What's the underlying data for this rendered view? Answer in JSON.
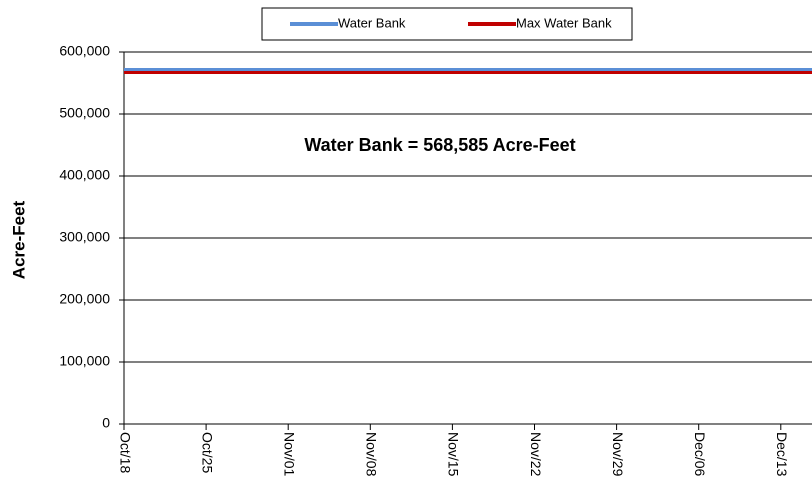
{
  "chart_data": {
    "type": "line",
    "categories": [
      "Oct/18",
      "Oct/25",
      "Nov/01",
      "Nov/08",
      "Nov/15",
      "Nov/22",
      "Nov/29",
      "Dec/06",
      "Dec/13",
      null
    ],
    "series": [
      {
        "name": "Water Bank",
        "color": "#5b8fd6",
        "values": [
          568585,
          568585,
          568585,
          568585,
          568585,
          568585,
          568585,
          568585,
          568585,
          568585
        ]
      },
      {
        "name": "Max Water Bank",
        "color": "#c00000",
        "values": [
          568585,
          568585,
          568585,
          568585,
          568585,
          568585,
          568585,
          568585,
          568585,
          568585
        ]
      }
    ],
    "ylabel": "Acre-Feet",
    "annotation": "Water Bank = 568,585 Acre-Feet",
    "ylim": [
      0,
      600000
    ],
    "yticks": [
      0,
      {
        "value": 100000,
        "label": "100,000"
      },
      {
        "value": 200000,
        "label": "200,000"
      },
      {
        "value": 300000,
        "label": "300,000"
      },
      {
        "value": 400000,
        "label": "400,000"
      },
      {
        "value": 500000,
        "label": "500,000"
      },
      {
        "value": 600000,
        "label": "600,000"
      }
    ],
    "grid": true,
    "legend": "top"
  }
}
